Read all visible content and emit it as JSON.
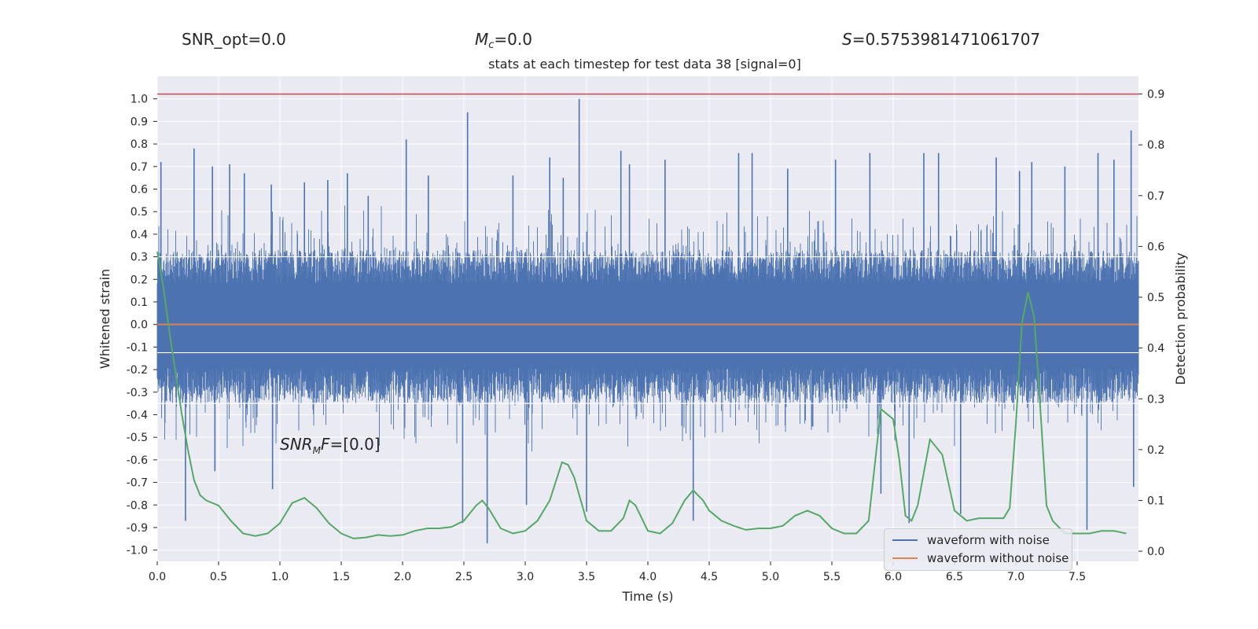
{
  "header": {
    "snr_opt": "SNR_opt=0.0",
    "mc_sym": "M",
    "mc_sub": "c",
    "mc_val": "=0.0",
    "s_sym": "S",
    "s_val": "=0.5753981471061707"
  },
  "annotation": {
    "snr_sym": "SNR",
    "snr_sub": "M",
    "snr_mid": "F",
    "snr_val": "=[0.0]"
  },
  "colors": {
    "background": "#eaeaf2",
    "grid": "#ffffff",
    "noise": "#4c72b0",
    "clean": "#dd8452",
    "probability": "#55a868",
    "threshold": "#c44e52"
  },
  "chart_data": {
    "type": "line",
    "title": "stats at each timestep for test data 38 [signal=0]",
    "xlabel": "Time (s)",
    "ylabel": "Whitened strain",
    "y2label": "Detection probability",
    "xlim": [
      0.0,
      8.0
    ],
    "ylim": [
      -1.05,
      1.1
    ],
    "y2lim": [
      -0.02,
      0.935
    ],
    "xticks": [
      "0.0",
      "0.5",
      "1.0",
      "1.5",
      "2.0",
      "2.5",
      "3.0",
      "3.5",
      "4.0",
      "4.5",
      "5.0",
      "5.5",
      "6.0",
      "6.5",
      "7.0",
      "7.5"
    ],
    "yticks": [
      "-1.0",
      "-0.9",
      "-0.8",
      "-0.7",
      "-0.6",
      "-0.5",
      "-0.4",
      "-0.3",
      "-0.2",
      "-0.1",
      "0.0",
      "0.1",
      "0.2",
      "0.3",
      "0.4",
      "0.5",
      "0.6",
      "0.7",
      "0.8",
      "0.9",
      "1.0"
    ],
    "y2ticks": [
      "0.0",
      "0.1",
      "0.2",
      "0.3",
      "0.4",
      "0.5",
      "0.6",
      "0.7",
      "0.8",
      "0.9"
    ],
    "grid": true,
    "legend_position": "lower-right",
    "threshold_line": {
      "axis": "right",
      "value": 0.9
    },
    "series": [
      {
        "name": "waveform with noise",
        "axis": "left",
        "envelope_range": [
          -0.35,
          0.33
        ],
        "peaks": [
          {
            "t": 0.03,
            "v": 0.72
          },
          {
            "t": 0.23,
            "v": -0.87
          },
          {
            "t": 0.3,
            "v": 0.78
          },
          {
            "t": 0.45,
            "v": 0.7
          },
          {
            "t": 0.47,
            "v": -0.65
          },
          {
            "t": 0.59,
            "v": 0.71
          },
          {
            "t": 0.71,
            "v": 0.67
          },
          {
            "t": 0.93,
            "v": 0.62
          },
          {
            "t": 0.94,
            "v": -0.73
          },
          {
            "t": 1.2,
            "v": 0.63
          },
          {
            "t": 1.39,
            "v": 0.64
          },
          {
            "t": 1.55,
            "v": 0.67
          },
          {
            "t": 1.72,
            "v": 0.57
          },
          {
            "t": 2.03,
            "v": 0.82
          },
          {
            "t": 2.21,
            "v": 0.66
          },
          {
            "t": 2.49,
            "v": -0.88
          },
          {
            "t": 2.53,
            "v": 0.94
          },
          {
            "t": 2.69,
            "v": -0.97
          },
          {
            "t": 2.9,
            "v": 0.66
          },
          {
            "t": 3.01,
            "v": -0.8
          },
          {
            "t": 3.2,
            "v": 0.74
          },
          {
            "t": 3.31,
            "v": 0.65
          },
          {
            "t": 3.44,
            "v": 1.0
          },
          {
            "t": 3.5,
            "v": -0.83
          },
          {
            "t": 3.78,
            "v": 0.77
          },
          {
            "t": 3.85,
            "v": 0.71
          },
          {
            "t": 4.14,
            "v": 0.73
          },
          {
            "t": 4.37,
            "v": -0.87
          },
          {
            "t": 4.74,
            "v": 0.76
          },
          {
            "t": 4.85,
            "v": 0.76
          },
          {
            "t": 5.14,
            "v": 0.69
          },
          {
            "t": 5.53,
            "v": 0.73
          },
          {
            "t": 5.81,
            "v": 0.76
          },
          {
            "t": 5.9,
            "v": -0.75
          },
          {
            "t": 6.13,
            "v": -0.88
          },
          {
            "t": 6.25,
            "v": 0.76
          },
          {
            "t": 6.37,
            "v": 0.76
          },
          {
            "t": 6.55,
            "v": -0.84
          },
          {
            "t": 6.84,
            "v": 0.74
          },
          {
            "t": 7.03,
            "v": 0.68
          },
          {
            "t": 7.13,
            "v": 0.72
          },
          {
            "t": 7.4,
            "v": 0.7
          },
          {
            "t": 7.58,
            "v": -0.91
          },
          {
            "t": 7.67,
            "v": 0.76
          },
          {
            "t": 7.8,
            "v": 0.73
          },
          {
            "t": 7.94,
            "v": 0.86
          },
          {
            "t": 7.96,
            "v": -0.72
          }
        ]
      },
      {
        "name": "waveform without noise",
        "axis": "left",
        "t": [
          0.0,
          8.0
        ],
        "values": [
          0.0,
          0.0
        ]
      },
      {
        "axis": "right",
        "t": [
          0.0,
          0.05,
          0.1,
          0.15,
          0.2,
          0.25,
          0.3,
          0.35,
          0.4,
          0.5,
          0.6,
          0.7,
          0.8,
          0.9,
          1.0,
          1.1,
          1.2,
          1.3,
          1.4,
          1.5,
          1.6,
          1.7,
          1.8,
          1.9,
          2.0,
          2.1,
          2.2,
          2.3,
          2.4,
          2.5,
          2.6,
          2.65,
          2.7,
          2.8,
          2.9,
          3.0,
          3.1,
          3.2,
          3.3,
          3.35,
          3.4,
          3.5,
          3.6,
          3.7,
          3.8,
          3.85,
          3.9,
          4.0,
          4.1,
          4.2,
          4.3,
          4.37,
          4.45,
          4.5,
          4.6,
          4.7,
          4.8,
          4.9,
          5.0,
          5.1,
          5.2,
          5.3,
          5.4,
          5.5,
          5.6,
          5.7,
          5.8,
          5.9,
          6.0,
          6.05,
          6.1,
          6.15,
          6.2,
          6.3,
          6.4,
          6.5,
          6.6,
          6.7,
          6.8,
          6.9,
          6.95,
          7.0,
          7.05,
          7.1,
          7.15,
          7.2,
          7.25,
          7.3,
          7.4,
          7.5,
          7.6,
          7.7,
          7.8,
          7.9
        ],
        "values": [
          0.59,
          0.52,
          0.43,
          0.35,
          0.27,
          0.2,
          0.14,
          0.11,
          0.1,
          0.09,
          0.06,
          0.035,
          0.03,
          0.035,
          0.055,
          0.095,
          0.105,
          0.085,
          0.055,
          0.035,
          0.025,
          0.027,
          0.032,
          0.03,
          0.032,
          0.04,
          0.045,
          0.045,
          0.048,
          0.06,
          0.09,
          0.1,
          0.085,
          0.045,
          0.035,
          0.04,
          0.06,
          0.1,
          0.175,
          0.17,
          0.145,
          0.06,
          0.04,
          0.04,
          0.065,
          0.1,
          0.09,
          0.04,
          0.035,
          0.055,
          0.1,
          0.12,
          0.1,
          0.08,
          0.06,
          0.05,
          0.042,
          0.045,
          0.045,
          0.05,
          0.07,
          0.08,
          0.07,
          0.045,
          0.035,
          0.035,
          0.06,
          0.28,
          0.26,
          0.18,
          0.07,
          0.06,
          0.09,
          0.22,
          0.19,
          0.08,
          0.06,
          0.065,
          0.065,
          0.065,
          0.085,
          0.25,
          0.45,
          0.51,
          0.46,
          0.28,
          0.09,
          0.06,
          0.035,
          0.035,
          0.035,
          0.04,
          0.04,
          0.035
        ]
      }
    ]
  }
}
